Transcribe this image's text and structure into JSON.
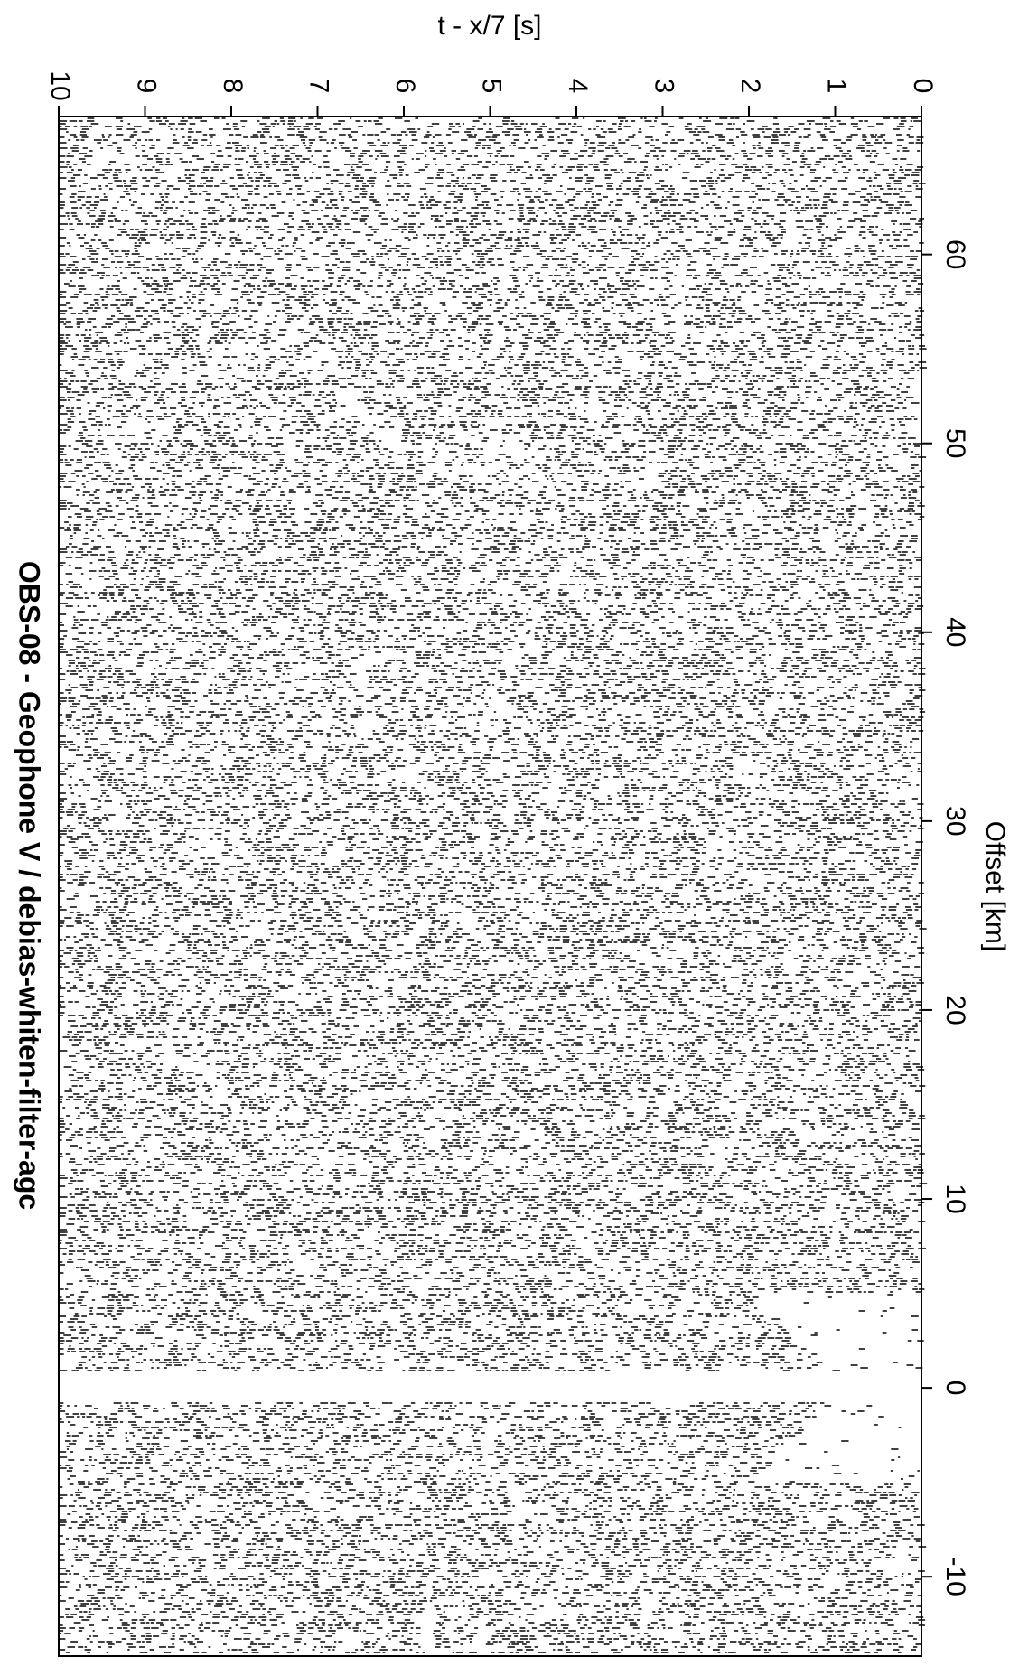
{
  "chart_data": {
    "type": "seismic-record-section",
    "title": "OBS-08  - Geophone V / debias-whiten-filter-agc",
    "x_label": "Offset [km]",
    "y_label": "t - x/7 [s]",
    "xlim": [
      -14.2,
      67.3
    ],
    "xticks": [
      -10,
      0,
      10,
      20,
      30,
      40,
      50,
      60
    ],
    "ylim": [
      0,
      10
    ],
    "yticks": [
      0,
      1,
      2,
      3,
      4,
      5,
      6,
      7,
      8,
      9,
      10
    ]
  }
}
